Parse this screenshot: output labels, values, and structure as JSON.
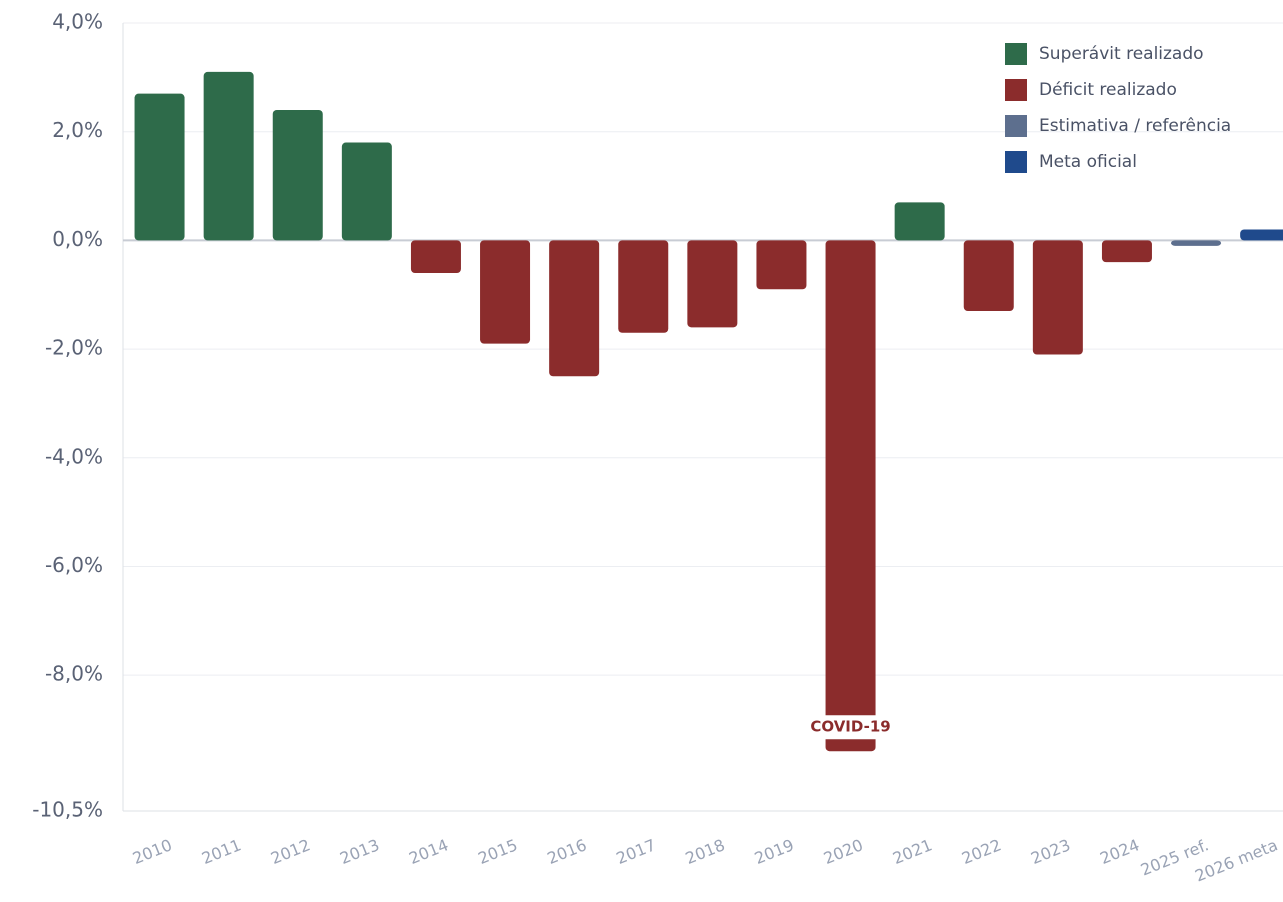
{
  "chart_data": {
    "type": "bar",
    "categories": [
      "2010",
      "2011",
      "2012",
      "2013",
      "2014",
      "2015",
      "2016",
      "2017",
      "2018",
      "2019",
      "2020",
      "2021",
      "2022",
      "2023",
      "2024",
      "2025 ref.",
      "2026 meta"
    ],
    "series": [
      {
        "name": "Superávit realizado",
        "color": "#2e6b4a",
        "values": [
          2.7,
          3.1,
          2.4,
          1.8,
          null,
          null,
          null,
          null,
          null,
          null,
          null,
          0.7,
          null,
          null,
          null,
          null,
          null
        ]
      },
      {
        "name": "Déficit realizado",
        "color": "#8b2c2c",
        "values": [
          null,
          null,
          null,
          null,
          -0.6,
          -1.9,
          -2.5,
          -1.7,
          -1.6,
          -0.9,
          -9.4,
          null,
          -1.3,
          -2.1,
          -0.4,
          null,
          null
        ]
      },
      {
        "name": "Estimativa / referência",
        "color": "#5d6f8e",
        "values": [
          null,
          null,
          null,
          null,
          null,
          null,
          null,
          null,
          null,
          null,
          null,
          null,
          null,
          null,
          null,
          -0.1,
          null
        ]
      },
      {
        "name": "Meta oficial",
        "color": "#1f4a8c",
        "values": [
          null,
          null,
          null,
          null,
          null,
          null,
          null,
          null,
          null,
          null,
          null,
          null,
          null,
          null,
          null,
          null,
          0.2
        ]
      }
    ],
    "ylim": [
      -10.5,
      4.0
    ],
    "yticks": [
      {
        "value": 4.0,
        "label": "4,0%"
      },
      {
        "value": 2.0,
        "label": "2,0%"
      },
      {
        "value": 0.0,
        "label": "0,0%"
      },
      {
        "value": -2.0,
        "label": "-2,0%"
      },
      {
        "value": -4.0,
        "label": "-4,0%"
      },
      {
        "value": -6.0,
        "label": "-6,0%"
      },
      {
        "value": -8.0,
        "label": "-8,0%"
      },
      {
        "value": -10.5,
        "label": "-10,5%"
      }
    ],
    "grid": true,
    "legend": "top-right",
    "annotations": [
      {
        "text": "COVID-19",
        "category": 10
      }
    ]
  }
}
